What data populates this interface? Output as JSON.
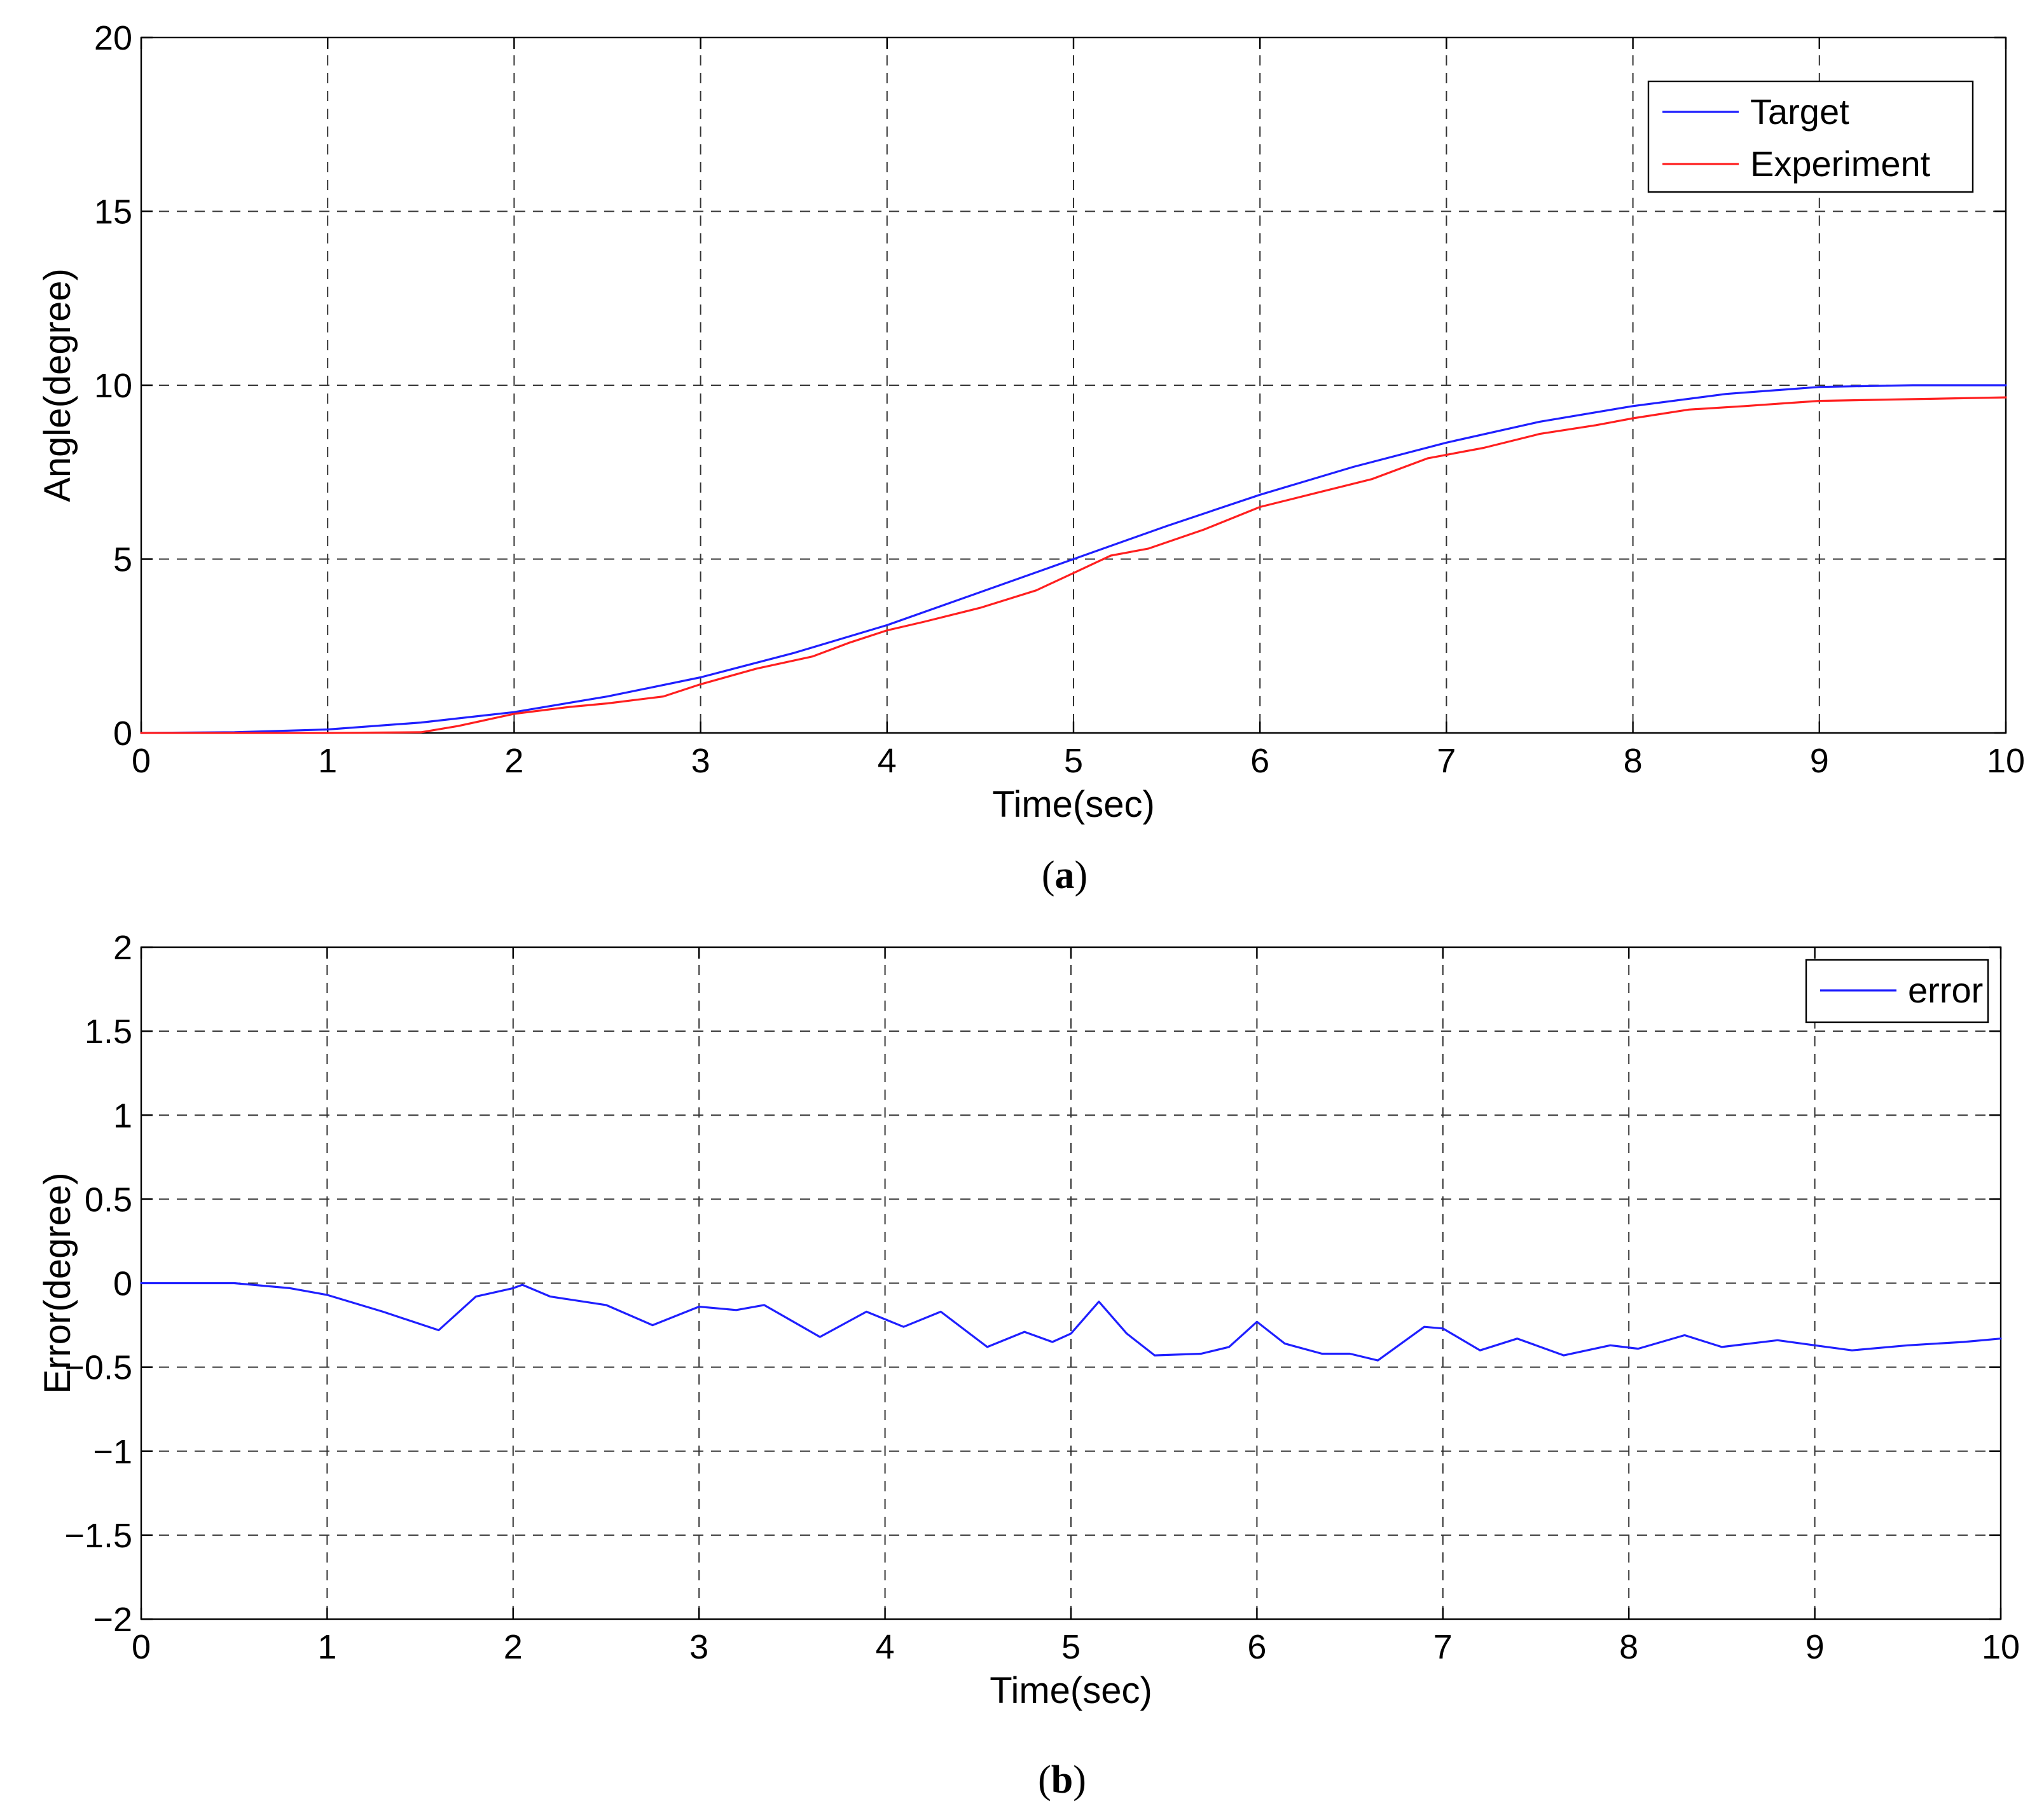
{
  "chart_data": [
    {
      "type": "line",
      "panel_label": "(a)",
      "xlabel": "Time(sec)",
      "ylabel": "Angle(degree)",
      "xlim": [
        0,
        10
      ],
      "ylim": [
        0,
        20
      ],
      "xticks": [
        0,
        1,
        2,
        3,
        4,
        5,
        6,
        7,
        8,
        9,
        10
      ],
      "yticks": [
        0,
        5,
        10,
        15,
        20
      ],
      "grid": true,
      "legend_position": "top-right",
      "series": [
        {
          "name": "Target",
          "color": "#1f1fff",
          "x": [
            0,
            0.5,
            1,
            1.5,
            2,
            2.5,
            3,
            3.5,
            4,
            4.5,
            5,
            5.5,
            6,
            6.5,
            7,
            7.5,
            8,
            8.5,
            9,
            9.5,
            10
          ],
          "y": [
            0,
            0.02,
            0.1,
            0.3,
            0.6,
            1.05,
            1.6,
            2.3,
            3.1,
            4.05,
            5.0,
            5.95,
            6.85,
            7.65,
            8.35,
            8.95,
            9.4,
            9.75,
            9.95,
            10.0,
            10.0
          ]
        },
        {
          "name": "Experiment",
          "color": "#ff1f1f",
          "x": [
            0,
            0.5,
            1,
            1.5,
            1.7,
            2,
            2.3,
            2.5,
            2.8,
            3,
            3.3,
            3.6,
            3.8,
            4,
            4.2,
            4.5,
            4.8,
            5,
            5.2,
            5.4,
            5.7,
            6,
            6.3,
            6.6,
            6.9,
            7.2,
            7.5,
            7.8,
            8,
            8.3,
            8.6,
            9,
            9.5,
            10
          ],
          "y": [
            0,
            0,
            0,
            0.02,
            0.2,
            0.55,
            0.75,
            0.85,
            1.05,
            1.4,
            1.85,
            2.2,
            2.6,
            2.95,
            3.2,
            3.6,
            4.1,
            4.6,
            5.1,
            5.3,
            5.85,
            6.5,
            6.9,
            7.3,
            7.9,
            8.2,
            8.6,
            8.85,
            9.05,
            9.3,
            9.4,
            9.55,
            9.6,
            9.65
          ]
        }
      ]
    },
    {
      "type": "line",
      "panel_label": "(b)",
      "xlabel": "Time(sec)",
      "ylabel": "Error(degree)",
      "xlim": [
        0,
        10
      ],
      "ylim": [
        -2,
        2
      ],
      "xticks": [
        0,
        1,
        2,
        3,
        4,
        5,
        6,
        7,
        8,
        9,
        10
      ],
      "yticks": [
        -2,
        -1.5,
        -1,
        -0.5,
        0,
        0.5,
        1,
        1.5,
        2
      ],
      "ytick_labels": [
        "−2",
        "−1.5",
        "−1",
        "−0.5",
        "0",
        "0.5",
        "1",
        "1.5",
        "2"
      ],
      "grid": true,
      "legend_position": "top-right",
      "series": [
        {
          "name": "error",
          "color": "#1f1fff",
          "x": [
            0,
            0.5,
            0.8,
            1,
            1.3,
            1.6,
            1.8,
            2.0,
            2.05,
            2.2,
            2.5,
            2.75,
            3.0,
            3.2,
            3.35,
            3.65,
            3.9,
            4.1,
            4.3,
            4.55,
            4.75,
            4.9,
            5.0,
            5.15,
            5.3,
            5.45,
            5.7,
            5.85,
            6.0,
            6.15,
            6.35,
            6.5,
            6.65,
            6.9,
            7.0,
            7.2,
            7.4,
            7.65,
            7.9,
            8.05,
            8.3,
            8.5,
            8.8,
            9.0,
            9.2,
            9.5,
            9.8,
            10
          ],
          "y": [
            0,
            0,
            -0.03,
            -0.07,
            -0.17,
            -0.28,
            -0.08,
            -0.03,
            -0.01,
            -0.08,
            -0.13,
            -0.25,
            -0.14,
            -0.16,
            -0.13,
            -0.32,
            -0.17,
            -0.26,
            -0.17,
            -0.38,
            -0.29,
            -0.35,
            -0.3,
            -0.11,
            -0.3,
            -0.43,
            -0.42,
            -0.38,
            -0.23,
            -0.36,
            -0.42,
            -0.42,
            -0.46,
            -0.26,
            -0.27,
            -0.4,
            -0.33,
            -0.43,
            -0.37,
            -0.39,
            -0.31,
            -0.38,
            -0.34,
            -0.37,
            -0.4,
            -0.37,
            -0.35,
            -0.33
          ]
        }
      ]
    }
  ]
}
